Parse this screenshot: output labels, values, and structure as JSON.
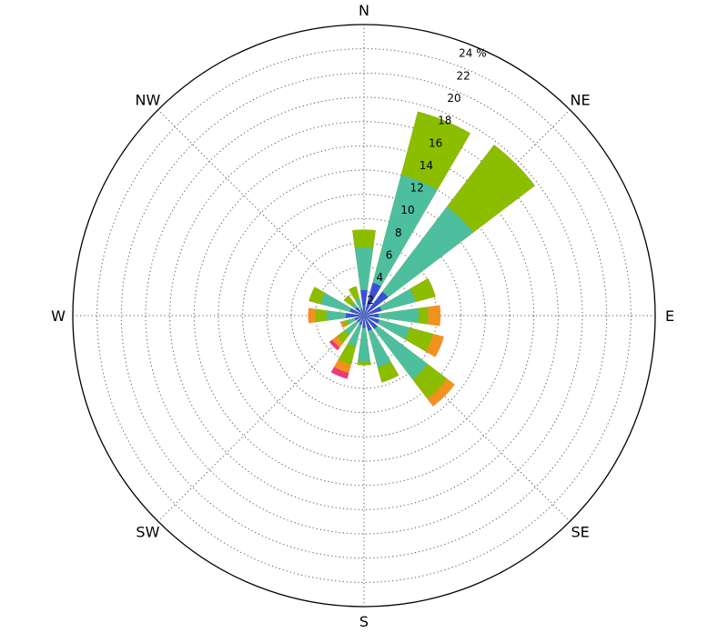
{
  "chart_data": {
    "type": "windrose",
    "title": "",
    "radial_unit": "%",
    "radial_ticks": [
      2,
      4,
      6,
      8,
      10,
      12,
      14,
      16,
      18,
      20,
      22,
      24
    ],
    "radial_max": 24,
    "grid": true,
    "direction_labels": [
      {
        "label": "N",
        "deg": 0
      },
      {
        "label": "NE",
        "deg": 45
      },
      {
        "label": "E",
        "deg": 90
      },
      {
        "label": "SE",
        "deg": 135
      },
      {
        "label": "S",
        "deg": 180
      },
      {
        "label": "SW",
        "deg": 225
      },
      {
        "label": "W",
        "deg": 270
      },
      {
        "label": "NW",
        "deg": 315
      }
    ],
    "sector_directions_deg": [
      0,
      22.5,
      45,
      67.5,
      90,
      112.5,
      135,
      157.5,
      180,
      202.5,
      225,
      247.5,
      270,
      292.5,
      315,
      337.5
    ],
    "sector_width_deg": 15.5,
    "series": [
      {
        "color": "#3a4fd6",
        "values": [
          2.1,
          2.8,
          2.5,
          1.5,
          1.2,
          1.3,
          1.4,
          1.3,
          1.0,
          0.8,
          0.7,
          0.8,
          1.5,
          1.2,
          0.9,
          0.6
        ]
      },
      {
        "color": "#4dbf9f",
        "values": [
          5.6,
          12.0,
          11.3,
          4.4,
          4.5,
          3.9,
          6.6,
          4.4,
          3.8,
          2.6,
          2.0,
          1.4,
          3.1,
          3.7,
          1.3,
          1.5
        ]
      },
      {
        "color": "#8bbd00",
        "values": [
          7.1,
          17.4,
          17.7,
          6.1,
          5.3,
          5.9,
          8.6,
          5.7,
          4.1,
          4.2,
          2.8,
          1.8,
          4.0,
          4.7,
          2.1,
          2.5
        ]
      },
      {
        "color": "#f2921e",
        "values": [
          7.1,
          17.4,
          17.7,
          6.1,
          6.3,
          6.8,
          9.4,
          5.7,
          4.1,
          4.9,
          3.3,
          2.0,
          4.6,
          4.7,
          2.1,
          2.5
        ]
      },
      {
        "color": "#e83a7d",
        "values": [
          7.1,
          17.4,
          17.7,
          6.1,
          6.3,
          6.8,
          9.4,
          5.7,
          4.1,
          5.4,
          3.6,
          2.0,
          4.6,
          4.7,
          2.1,
          2.5
        ]
      }
    ]
  }
}
